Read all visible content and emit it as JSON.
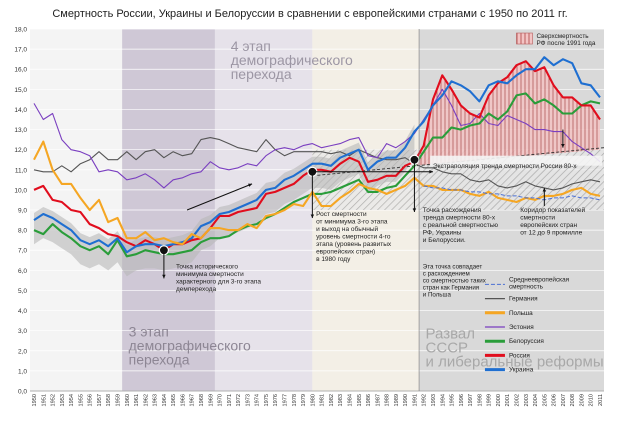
{
  "chart_data": {
    "type": "line",
    "title": "Смертность России, Украины и Белоруссии в сравнении с европейскими странами с 1950 по 2011 гг.",
    "xlabel": "",
    "ylabel": "",
    "ylim": [
      0,
      18
    ],
    "yticks": [
      "0,0",
      "1,0",
      "2,0",
      "3,0",
      "4,0",
      "5,0",
      "6,0",
      "7,0",
      "8,0",
      "9,0",
      "10,0",
      "11,0",
      "12,0",
      "13,0",
      "14,0",
      "15,0",
      "16,0",
      "17,0",
      "18,0"
    ],
    "x": [
      1950,
      1951,
      1952,
      1953,
      1954,
      1955,
      1956,
      1957,
      1958,
      1959,
      1960,
      1961,
      1962,
      1963,
      1964,
      1965,
      1966,
      1967,
      1968,
      1969,
      1970,
      1971,
      1972,
      1973,
      1974,
      1975,
      1976,
      1977,
      1978,
      1979,
      1980,
      1981,
      1982,
      1983,
      1984,
      1985,
      1986,
      1987,
      1988,
      1989,
      1990,
      1991,
      1992,
      1993,
      1994,
      1995,
      1996,
      1997,
      1998,
      1999,
      2000,
      2001,
      2002,
      2003,
      2004,
      2005,
      2006,
      2007,
      2008,
      2009,
      2010,
      2011
    ],
    "xtick_labels": [
      "1950",
      "1951",
      "1952",
      "1953",
      "1954",
      "1955",
      "1956",
      "1957",
      "1958",
      "1959",
      "1960",
      "1961",
      "1962",
      "1963",
      "1964",
      "1965",
      "1966",
      "1967",
      "1968",
      "1969",
      "1970",
      "1971",
      "1972",
      "1973",
      "1974",
      "1975",
      "1976",
      "1977",
      "1978",
      "1979",
      "1980",
      "1981",
      "1982",
      "1983",
      "1984",
      "1985",
      "1986",
      "1987",
      "1988",
      "1989",
      "1990",
      "1991",
      "1992",
      "1993",
      "1994",
      "1995",
      "1996",
      "1997",
      "1998",
      "1999",
      "2000",
      "2001",
      "2002",
      "2003",
      "2004",
      "2005",
      "2006",
      "2007",
      "2008",
      "2009",
      "2010",
      "2011"
    ],
    "series": [
      {
        "name": "Германия",
        "color": "#555555",
        "values": [
          11.0,
          10.9,
          10.9,
          11.2,
          10.9,
          11.3,
          11.5,
          11.9,
          11.5,
          11.5,
          11.9,
          11.5,
          11.9,
          12.0,
          11.6,
          11.9,
          11.7,
          11.8,
          12.5,
          12.6,
          12.5,
          12.3,
          12.1,
          12.0,
          11.9,
          12.5,
          12.0,
          11.7,
          11.9,
          11.9,
          11.9,
          11.9,
          11.8,
          11.9,
          11.7,
          12.0,
          11.8,
          11.6,
          11.5,
          11.5,
          11.6,
          11.3,
          11.1,
          11.1,
          10.9,
          10.8,
          10.8,
          10.5,
          10.4,
          10.5,
          10.2,
          10.1,
          10.2,
          10.4,
          10.2,
          10.1,
          10.0,
          10.1,
          10.3,
          10.4,
          10.5,
          10.4
        ]
      },
      {
        "name": "Эстония",
        "color": "#7a3fc0",
        "values": [
          14.3,
          13.5,
          13.8,
          12.5,
          12.0,
          11.9,
          11.7,
          10.9,
          11.0,
          10.9,
          10.5,
          10.6,
          10.8,
          10.5,
          10.1,
          10.5,
          10.6,
          10.8,
          10.9,
          11.4,
          11.1,
          11.0,
          11.1,
          11.3,
          11.2,
          11.7,
          12.0,
          12.1,
          12.0,
          12.2,
          12.3,
          12.1,
          12.2,
          12.3,
          12.5,
          12.6,
          11.7,
          11.6,
          12.3,
          12.1,
          12.4,
          12.8,
          13.5,
          14.2,
          15.0,
          14.2,
          13.2,
          13.3,
          13.8,
          13.3,
          13.2,
          13.7,
          13.5,
          13.3,
          13.0,
          13.0,
          12.9,
          12.9,
          12.4,
          12.1,
          11.8,
          11.4
        ]
      },
      {
        "name": "Белоруссия",
        "color": "#2a9d3a",
        "values": [
          8.0,
          7.8,
          8.3,
          7.9,
          7.6,
          7.2,
          7.0,
          7.2,
          6.8,
          7.5,
          6.7,
          6.8,
          7.0,
          6.9,
          6.8,
          6.8,
          6.9,
          7.0,
          7.4,
          7.6,
          7.6,
          7.7,
          8.0,
          8.2,
          8.3,
          8.6,
          8.8,
          9.1,
          9.4,
          9.6,
          9.8,
          9.8,
          9.9,
          10.1,
          10.3,
          10.5,
          9.9,
          9.9,
          10.1,
          10.2,
          10.7,
          11.2,
          11.9,
          12.6,
          12.6,
          13.1,
          13.0,
          13.2,
          13.3,
          13.8,
          13.5,
          13.9,
          14.7,
          14.8,
          14.3,
          14.5,
          14.2,
          13.8,
          13.8,
          14.2,
          14.4,
          14.3
        ]
      },
      {
        "name": "Россия",
        "color": "#e10d1d",
        "values": [
          10.0,
          10.2,
          9.5,
          9.4,
          9.0,
          8.9,
          8.3,
          8.1,
          7.8,
          7.7,
          7.4,
          7.2,
          7.5,
          7.3,
          7.0,
          7.3,
          7.3,
          7.5,
          7.6,
          8.1,
          8.7,
          8.7,
          8.9,
          9.0,
          9.1,
          9.8,
          9.9,
          10.1,
          10.3,
          10.7,
          11.0,
          11.0,
          10.9,
          11.3,
          11.6,
          11.4,
          10.4,
          10.5,
          10.7,
          10.7,
          11.2,
          11.4,
          12.2,
          14.5,
          15.7,
          15.0,
          14.2,
          13.8,
          13.6,
          14.7,
          15.3,
          15.6,
          16.2,
          16.4,
          15.9,
          16.1,
          15.2,
          14.6,
          14.6,
          14.2,
          14.2,
          13.5
        ]
      },
      {
        "name": "Украина",
        "color": "#1f6fd1",
        "values": [
          8.5,
          8.8,
          8.6,
          8.3,
          8.0,
          7.5,
          7.3,
          7.5,
          7.2,
          7.6,
          6.9,
          7.2,
          7.3,
          7.3,
          7.2,
          7.3,
          7.4,
          7.6,
          8.2,
          8.4,
          8.8,
          8.9,
          9.1,
          9.3,
          9.5,
          10.0,
          10.1,
          10.5,
          10.7,
          11.0,
          11.3,
          11.3,
          11.2,
          11.6,
          11.8,
          12.0,
          11.0,
          11.4,
          11.6,
          11.6,
          12.1,
          12.9,
          13.4,
          14.2,
          14.7,
          15.4,
          15.2,
          14.9,
          14.4,
          15.2,
          15.4,
          15.3,
          15.7,
          16.0,
          16.0,
          16.6,
          16.2,
          16.5,
          16.3,
          15.3,
          15.2,
          14.6
        ]
      },
      {
        "name": "Польша",
        "color": "#f5a623",
        "values": [
          11.5,
          12.4,
          11.0,
          10.3,
          10.3,
          9.6,
          9.0,
          9.5,
          8.4,
          8.6,
          7.6,
          7.6,
          7.9,
          7.5,
          7.6,
          7.4,
          7.3,
          7.8,
          7.6,
          8.1,
          8.1,
          8.0,
          8.0,
          8.3,
          8.1,
          8.7,
          8.8,
          9.0,
          9.3,
          9.2,
          9.9,
          9.2,
          9.2,
          9.6,
          9.9,
          10.3,
          10.1,
          10.0,
          9.8,
          10.0,
          10.2,
          10.6,
          10.2,
          10.2,
          10.0,
          10.0,
          10.0,
          9.8,
          9.7,
          9.9,
          9.6,
          9.5,
          9.4,
          9.6,
          9.5,
          9.7,
          9.7,
          9.8,
          10.0,
          10.1,
          9.8,
          9.7
        ]
      },
      {
        "name": "Среднеевропейская смертность",
        "color": "#4a6fd4",
        "values": [
          null,
          null,
          null,
          null,
          null,
          null,
          null,
          null,
          null,
          null,
          null,
          null,
          null,
          null,
          null,
          null,
          null,
          null,
          null,
          null,
          null,
          null,
          null,
          null,
          null,
          null,
          null,
          null,
          null,
          null,
          null,
          null,
          null,
          null,
          null,
          null,
          null,
          null,
          null,
          null,
          null,
          null,
          10.2,
          10.1,
          10.1,
          10.0,
          10.0,
          9.9,
          9.9,
          9.8,
          9.8,
          9.7,
          9.7,
          9.6,
          9.6,
          9.5,
          9.6,
          9.6,
          9.7,
          9.6,
          9.6,
          9.5
        ]
      }
    ],
    "annotations": {
      "stage3": "3 этап\nдемографического\nперехода",
      "stage4": "4 этап\nдемографического\nперехода",
      "collapse": "Развал\nСССР\nи либеральные реформы",
      "excess_legend": "Сверхсмертность\nРФ после 1991 года",
      "extrapolation": "Экстраполяция тренда смертности России 80-х",
      "point_min": "Точка исторического\nминимума смертности\nхарактерного для 3-го этапа\nдемперехода",
      "growth": "Рост смертности\nот минимума 3-го этапа\nи выход на обычный\nуровень смертности 4-го\nэтапа (уровень развитых\nевропейских стран)\nв 1980 году",
      "divergence": "Точка расхождения\nтренда смертности 80-х\nс реальной смертностью\nРФ, Украины\nи Белоруссии.",
      "coincidence": "Эта точка совпадает\nс расхождением\nсо смертностью таких\nстран как Германия\nи Польша",
      "corridor": "Коридор показателей\nсмертности\nевропейских стран\nот 12 до 9 промилле"
    },
    "legend_placement": "bottom-right"
  }
}
